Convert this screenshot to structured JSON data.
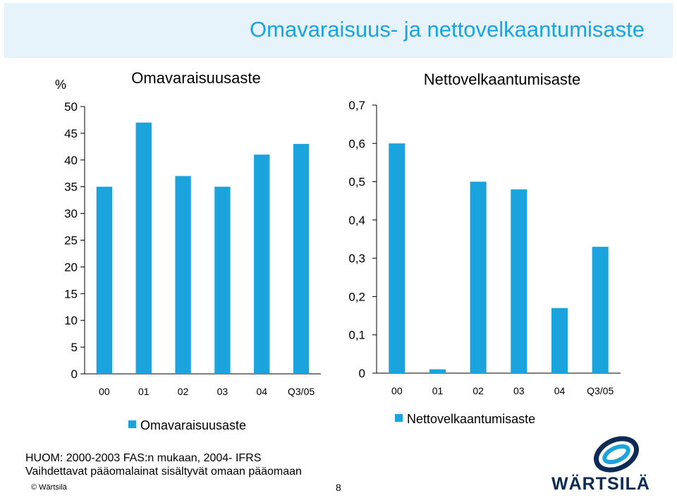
{
  "header": {
    "title": "Omavaraisuus- ja nettovelkaantumisaste"
  },
  "chart_data": [
    {
      "type": "bar",
      "title": "Omavaraisuusaste",
      "unit_label": "%",
      "categories": [
        "00",
        "01",
        "02",
        "03",
        "04",
        "Q3/05"
      ],
      "series": [
        {
          "name": "Omavaraisuusaste",
          "values": [
            35,
            47,
            37,
            35,
            41,
            43
          ]
        }
      ],
      "yticks": [
        "0",
        "5",
        "10",
        "15",
        "20",
        "25",
        "30",
        "35",
        "40",
        "45",
        "50"
      ],
      "ylim": [
        0,
        50
      ],
      "color": "#1aa3dc",
      "legend_position": "bottom"
    },
    {
      "type": "bar",
      "title": "Nettovelkaantumisaste",
      "categories": [
        "00",
        "01",
        "02",
        "03",
        "04",
        "Q3/05"
      ],
      "series": [
        {
          "name": "Nettovelkaantumisaste",
          "values": [
            0.6,
            0.01,
            0.5,
            0.48,
            0.17,
            0.33
          ]
        }
      ],
      "yticks": [
        "0",
        "0,1",
        "0,2",
        "0,3",
        "0,4",
        "0,5",
        "0,6",
        "0,7"
      ],
      "ylim": [
        0,
        0.7
      ],
      "color": "#1aa3dc",
      "legend_position": "bottom"
    }
  ],
  "footer": {
    "note_line1": "HUOM: 2000-2003 FAS:n mukaan, 2004- IFRS",
    "note_line2": "Vaihdettavat pääomalainat sisältyvät omaan pääomaan",
    "copyright": "© Wärtsilä",
    "page_number": "8",
    "logo_text": "WÄRTSILÄ"
  }
}
